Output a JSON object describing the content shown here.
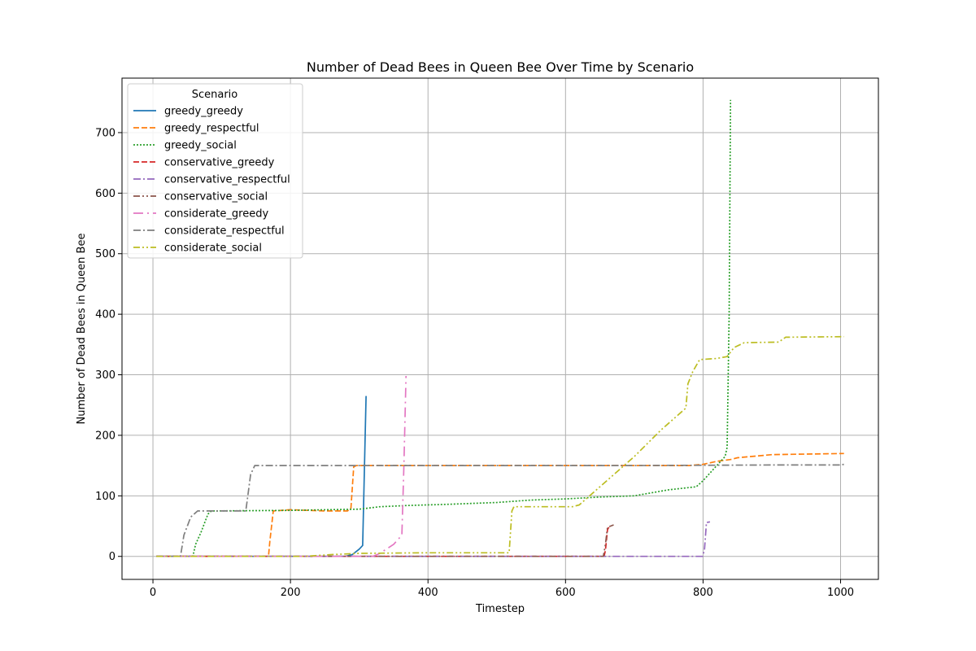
{
  "chart_data": {
    "type": "line",
    "title": "Number of Dead Bees in Queen Bee Over Time by Scenario",
    "xlabel": "Timestep",
    "ylabel": "Number of Dead Bees in Queen Bee",
    "xlim": [
      -45,
      1055
    ],
    "ylim": [
      -38,
      790
    ],
    "xticks": [
      0,
      200,
      400,
      600,
      800,
      1000
    ],
    "yticks": [
      0,
      100,
      200,
      300,
      400,
      500,
      600,
      700
    ],
    "grid": true,
    "legend": {
      "title": "Scenario",
      "placement": "upper-left"
    },
    "series": [
      {
        "name": "greedy_greedy",
        "color": "#1f77b4",
        "dash": "solid",
        "points": [
          [
            5,
            0
          ],
          [
            280,
            0
          ],
          [
            290,
            3
          ],
          [
            300,
            12
          ],
          [
            305,
            18
          ],
          [
            310,
            265
          ]
        ]
      },
      {
        "name": "greedy_respectful",
        "color": "#ff7f0e",
        "dash": "dashed",
        "points": [
          [
            5,
            0
          ],
          [
            168,
            0
          ],
          [
            170,
            25
          ],
          [
            175,
            75
          ],
          [
            200,
            77
          ],
          [
            250,
            75
          ],
          [
            283,
            75
          ],
          [
            288,
            80
          ],
          [
            292,
            148
          ],
          [
            296,
            150
          ],
          [
            400,
            150
          ],
          [
            600,
            150
          ],
          [
            700,
            150
          ],
          [
            780,
            150
          ],
          [
            800,
            152
          ],
          [
            820,
            157
          ],
          [
            840,
            160
          ],
          [
            850,
            163
          ],
          [
            870,
            165
          ],
          [
            900,
            168
          ],
          [
            950,
            169
          ],
          [
            1005,
            170
          ]
        ]
      },
      {
        "name": "greedy_social",
        "color": "#2ca02c",
        "dash": "dotted",
        "points": [
          [
            5,
            0
          ],
          [
            58,
            0
          ],
          [
            62,
            20
          ],
          [
            70,
            40
          ],
          [
            80,
            70
          ],
          [
            85,
            75
          ],
          [
            200,
            76
          ],
          [
            300,
            78
          ],
          [
            330,
            82
          ],
          [
            370,
            84
          ],
          [
            430,
            86
          ],
          [
            500,
            89
          ],
          [
            550,
            93
          ],
          [
            600,
            95
          ],
          [
            650,
            98
          ],
          [
            700,
            100
          ],
          [
            750,
            110
          ],
          [
            790,
            115
          ],
          [
            800,
            125
          ],
          [
            820,
            150
          ],
          [
            832,
            165
          ],
          [
            835,
            180
          ],
          [
            838,
            400
          ],
          [
            840,
            754
          ]
        ]
      },
      {
        "name": "conservative_greedy",
        "color": "#d62728",
        "dash": "dashed",
        "points": [
          [
            5,
            0
          ],
          [
            650,
            0
          ],
          [
            656,
            0
          ],
          [
            658,
            10
          ],
          [
            661,
            44
          ],
          [
            664,
            50
          ]
        ]
      },
      {
        "name": "conservative_respectful",
        "color": "#9467bd",
        "dash": "dashdot",
        "points": [
          [
            5,
            0
          ],
          [
            600,
            0
          ],
          [
            799,
            0
          ],
          [
            802,
            10
          ],
          [
            805,
            56
          ],
          [
            810,
            57
          ]
        ]
      },
      {
        "name": "conservative_social",
        "color": "#8c564b",
        "dash": "dashdotdot",
        "points": [
          [
            5,
            0
          ],
          [
            400,
            0
          ],
          [
            600,
            0
          ],
          [
            655,
            0
          ],
          [
            658,
            20
          ],
          [
            661,
            48
          ],
          [
            670,
            52
          ]
        ]
      },
      {
        "name": "considerate_greedy",
        "color": "#e377c2",
        "dash": "longdash",
        "points": [
          [
            5,
            0
          ],
          [
            320,
            0
          ],
          [
            330,
            5
          ],
          [
            350,
            20
          ],
          [
            362,
            35
          ],
          [
            365,
            150
          ],
          [
            368,
            298
          ]
        ]
      },
      {
        "name": "considerate_respectful",
        "color": "#7f7f7f",
        "dash": "dashdot",
        "points": [
          [
            5,
            0
          ],
          [
            40,
            0
          ],
          [
            45,
            35
          ],
          [
            55,
            65
          ],
          [
            65,
            75
          ],
          [
            135,
            75
          ],
          [
            138,
            100
          ],
          [
            142,
            135
          ],
          [
            148,
            150
          ],
          [
            400,
            150
          ],
          [
            700,
            150
          ],
          [
            900,
            151
          ],
          [
            1000,
            151
          ],
          [
            1005,
            152
          ]
        ]
      },
      {
        "name": "considerate_social",
        "color": "#bcbd22",
        "dash": "dashdotdot",
        "points": [
          [
            5,
            0
          ],
          [
            220,
            0
          ],
          [
            260,
            3
          ],
          [
            300,
            5
          ],
          [
            400,
            6
          ],
          [
            500,
            6
          ],
          [
            518,
            6
          ],
          [
            522,
            75
          ],
          [
            525,
            82
          ],
          [
            610,
            82
          ],
          [
            620,
            85
          ],
          [
            650,
            115
          ],
          [
            700,
            165
          ],
          [
            740,
            210
          ],
          [
            775,
            245
          ],
          [
            778,
            285
          ],
          [
            785,
            305
          ],
          [
            795,
            325
          ],
          [
            820,
            327
          ],
          [
            835,
            330
          ],
          [
            845,
            345
          ],
          [
            860,
            353
          ],
          [
            910,
            354
          ],
          [
            920,
            362
          ],
          [
            1005,
            363
          ]
        ]
      }
    ]
  }
}
